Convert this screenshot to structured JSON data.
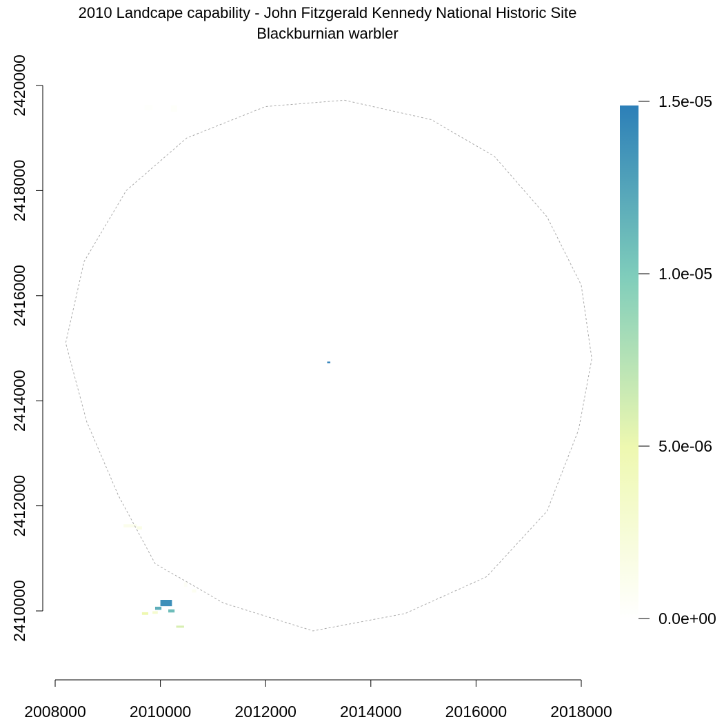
{
  "title": "2010 Landcape capability - John Fitzgerald Kennedy National Historic Site",
  "subtitle": "Blackburnian warbler",
  "chart_data": {
    "type": "heatmap",
    "x_ticks": [
      2008000,
      2010000,
      2012000,
      2014000,
      2016000,
      2018000
    ],
    "y_ticks": [
      2410000,
      2412000,
      2414000,
      2416000,
      2418000,
      2420000
    ],
    "x_tick_labels": [
      "2008000",
      "2010000",
      "2012000",
      "2014000",
      "2016000",
      "2018000"
    ],
    "y_tick_labels": [
      "2410000",
      "2412000",
      "2414000",
      "2416000",
      "2418000",
      "2420000"
    ],
    "xlim": [
      2008000,
      2018000
    ],
    "ylim": [
      2410000,
      2420000
    ],
    "legend": {
      "placement": "right",
      "range": [
        0,
        1.5e-05
      ],
      "ticks": [
        0,
        5e-06,
        1e-05,
        1.5e-05
      ],
      "tick_labels": [
        "0.0e+00",
        "5.0e-06",
        "1.0e-05",
        "1.5e-05"
      ],
      "colors": [
        "#ffffff",
        "#eef8b0",
        "#7fcdbb",
        "#2c7fb8"
      ]
    },
    "boundary": {
      "style": "dashed gray",
      "vertices": [
        [
          2013500,
          2419720
        ],
        [
          2015150,
          2419350
        ],
        [
          2016350,
          2418650
        ],
        [
          2017350,
          2417500
        ],
        [
          2018000,
          2416200
        ],
        [
          2018200,
          2414800
        ],
        [
          2017950,
          2413450
        ],
        [
          2017350,
          2411900
        ],
        [
          2016200,
          2410650
        ],
        [
          2014650,
          2409950
        ],
        [
          2012900,
          2409620
        ],
        [
          2011200,
          2410150
        ],
        [
          2009900,
          2410900
        ],
        [
          2009200,
          2412200
        ],
        [
          2008600,
          2413600
        ],
        [
          2008200,
          2415100
        ],
        [
          2008550,
          2416650
        ],
        [
          2009350,
          2418000
        ],
        [
          2010500,
          2419000
        ],
        [
          2012000,
          2419600
        ]
      ]
    },
    "patches": [
      {
        "x": 2009700,
        "y": 2419580,
        "w": 150,
        "h": 100,
        "value": 2e-07
      },
      {
        "x": 2010200,
        "y": 2419560,
        "w": 120,
        "h": 120,
        "value": 3e-07
      },
      {
        "x": 2009300,
        "y": 2411620,
        "w": 250,
        "h": 60,
        "value": 1.2e-06
      },
      {
        "x": 2009550,
        "y": 2411580,
        "w": 100,
        "h": 60,
        "value": 1.5e-06
      },
      {
        "x": 2010450,
        "y": 2410500,
        "w": 60,
        "h": 90,
        "value": 6e-07
      },
      {
        "x": 2010600,
        "y": 2410380,
        "w": 80,
        "h": 60,
        "value": 9e-07
      },
      {
        "x": 2010000,
        "y": 2410150,
        "w": 220,
        "h": 120,
        "value": 1.4e-05
      },
      {
        "x": 2009900,
        "y": 2410050,
        "w": 120,
        "h": 60,
        "value": 1.2e-05
      },
      {
        "x": 2010150,
        "y": 2410000,
        "w": 120,
        "h": 60,
        "value": 1.1e-05
      },
      {
        "x": 2009650,
        "y": 2409950,
        "w": 120,
        "h": 50,
        "value": 5e-06
      },
      {
        "x": 2009850,
        "y": 2409970,
        "w": 100,
        "h": 50,
        "value": 3e-06
      },
      {
        "x": 2010300,
        "y": 2409700,
        "w": 150,
        "h": 40,
        "value": 6e-06
      },
      {
        "x": 2013170,
        "y": 2414730,
        "w": 60,
        "h": 30,
        "value": 1.5e-05
      }
    ]
  }
}
